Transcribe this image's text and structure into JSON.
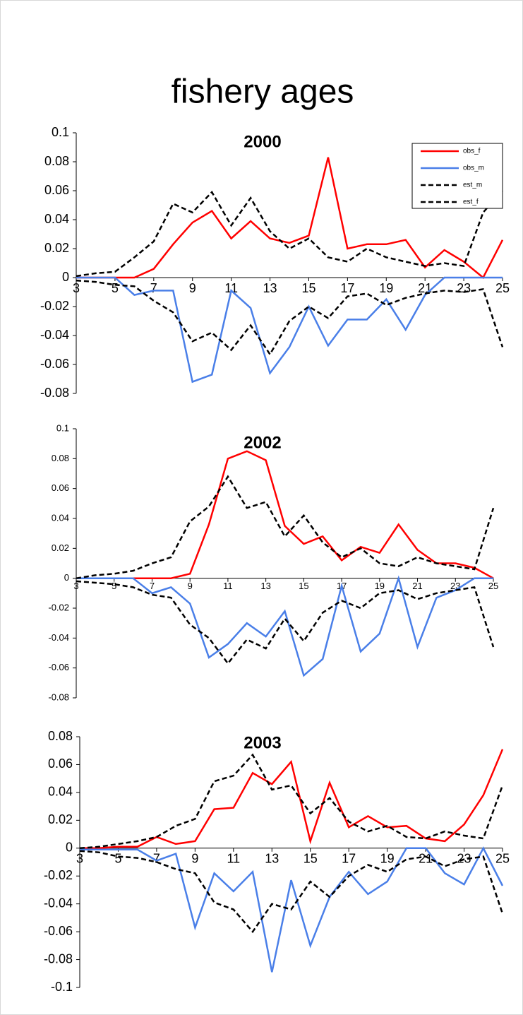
{
  "title": "fishery ages",
  "chart_data": [
    {
      "type": "line",
      "title": "2000",
      "legend": "upper right",
      "x": [
        3,
        4,
        5,
        6,
        7,
        8,
        9,
        10,
        11,
        12,
        13,
        14,
        15,
        16,
        17,
        18,
        19,
        20,
        21,
        22,
        23,
        24,
        25
      ],
      "xlim": [
        3,
        25
      ],
      "xticks": [
        3,
        5,
        7,
        9,
        11,
        13,
        15,
        17,
        19,
        21,
        23,
        25
      ],
      "ylim": [
        -0.08,
        0.1
      ],
      "yticks": [
        0.1,
        0.08,
        0.06,
        0.04,
        0.02,
        0,
        -0.02,
        -0.04,
        -0.06,
        -0.08
      ],
      "series": [
        {
          "name": "obs_f",
          "color": "#ff0000",
          "linestyle": "solid",
          "values": [
            0,
            0,
            0,
            0,
            0.006,
            0.023,
            0.038,
            0.046,
            0.027,
            0.039,
            0.027,
            0.024,
            0.029,
            0.083,
            0.02,
            0.023,
            0.023,
            0.026,
            0.007,
            0.019,
            0.011,
            0,
            0.026
          ]
        },
        {
          "name": "obs_m",
          "color": "#4a7fe8",
          "linestyle": "solid",
          "values": [
            0,
            0,
            0,
            -0.012,
            -0.009,
            -0.009,
            -0.072,
            -0.067,
            -0.009,
            -0.021,
            -0.066,
            -0.048,
            -0.02,
            -0.047,
            -0.029,
            -0.029,
            -0.015,
            -0.036,
            -0.012,
            0,
            0,
            0,
            0
          ]
        },
        {
          "name": "est_m",
          "color": "#000000",
          "linestyle": "dashed",
          "values": [
            -0.002,
            -0.003,
            -0.005,
            -0.006,
            -0.016,
            -0.024,
            -0.044,
            -0.038,
            -0.05,
            -0.033,
            -0.053,
            -0.03,
            -0.02,
            -0.028,
            -0.013,
            -0.011,
            -0.019,
            -0.014,
            -0.011,
            -0.009,
            -0.01,
            -0.008,
            -0.048
          ]
        },
        {
          "name": "est_f",
          "color": "#000000",
          "linestyle": "dashed",
          "values": [
            0.001,
            0.003,
            0.004,
            0.014,
            0.025,
            0.051,
            0.045,
            0.059,
            0.036,
            0.055,
            0.032,
            0.02,
            0.027,
            0.014,
            0.011,
            0.02,
            0.014,
            0.011,
            0.008,
            0.01,
            0.008,
            0.045,
            0.06
          ]
        }
      ]
    },
    {
      "type": "line",
      "title": "2002",
      "x": [
        3,
        4,
        5,
        6,
        7,
        8,
        9,
        10,
        11,
        12,
        13,
        14,
        15,
        16,
        17,
        18,
        19,
        20,
        21,
        22,
        23,
        24,
        25
      ],
      "xlim": [
        3,
        25
      ],
      "xticks": [
        3,
        5,
        7,
        9,
        11,
        13,
        15,
        17,
        19,
        21,
        23,
        25
      ],
      "ylim": [
        -0.08,
        0.1
      ],
      "yticks": [
        0.1,
        0.08,
        0.06,
        0.04,
        0.02,
        0,
        -0.02,
        -0.04,
        -0.06,
        -0.08
      ],
      "series": [
        {
          "color": "#ff0000",
          "linestyle": "solid",
          "values": [
            0,
            0,
            0,
            0,
            0,
            0,
            0.003,
            0.036,
            0.08,
            0.085,
            0.079,
            0.035,
            0.023,
            0.028,
            0.012,
            0.021,
            0.017,
            0.036,
            0.019,
            0.01,
            0.01,
            0.007,
            0
          ]
        },
        {
          "color": "#4a7fe8",
          "linestyle": "solid",
          "values": [
            0,
            0,
            0,
            0,
            -0.01,
            -0.006,
            -0.017,
            -0.053,
            -0.044,
            -0.03,
            -0.039,
            -0.022,
            -0.065,
            -0.054,
            -0.005,
            -0.049,
            -0.037,
            0,
            -0.046,
            -0.013,
            -0.008,
            0,
            0
          ]
        },
        {
          "color": "#000000",
          "linestyle": "dashed",
          "values": [
            -0.002,
            -0.003,
            -0.004,
            -0.006,
            -0.011,
            -0.013,
            -0.031,
            -0.04,
            -0.057,
            -0.041,
            -0.047,
            -0.027,
            -0.042,
            -0.023,
            -0.015,
            -0.02,
            -0.01,
            -0.008,
            -0.014,
            -0.01,
            -0.008,
            -0.006,
            -0.046
          ]
        },
        {
          "color": "#000000",
          "linestyle": "dashed",
          "values": [
            0,
            0.002,
            0.003,
            0.005,
            0.01,
            0.014,
            0.038,
            0.048,
            0.068,
            0.047,
            0.051,
            0.028,
            0.042,
            0.024,
            0.014,
            0.02,
            0.01,
            0.008,
            0.014,
            0.01,
            0.008,
            0.006,
            0.047
          ]
        }
      ]
    },
    {
      "type": "line",
      "title": "2003",
      "x": [
        3,
        4,
        5,
        6,
        7,
        8,
        9,
        10,
        11,
        12,
        13,
        14,
        15,
        16,
        17,
        18,
        19,
        20,
        21,
        22,
        23,
        24,
        25
      ],
      "xlim": [
        3,
        25
      ],
      "xticks": [
        3,
        5,
        7,
        9,
        11,
        13,
        15,
        17,
        19,
        21,
        23,
        25
      ],
      "ylim": [
        -0.1,
        0.08
      ],
      "yticks": [
        0.08,
        0.06,
        0.04,
        0.02,
        0,
        -0.02,
        -0.04,
        -0.06,
        -0.08,
        -0.1
      ],
      "series": [
        {
          "color": "#ff0000",
          "linestyle": "solid",
          "values": [
            0,
            0,
            0.001,
            0.001,
            0.008,
            0.003,
            0.005,
            0.028,
            0.029,
            0.054,
            0.046,
            0.062,
            0.005,
            0.047,
            0.015,
            0.023,
            0.015,
            0.016,
            0.007,
            0.005,
            0.017,
            0.038,
            0.071
          ]
        },
        {
          "color": "#4a7fe8",
          "linestyle": "solid",
          "values": [
            -0.001,
            -0.001,
            -0.001,
            -0.001,
            -0.009,
            -0.004,
            -0.057,
            -0.018,
            -0.031,
            -0.017,
            -0.089,
            -0.023,
            -0.07,
            -0.035,
            -0.017,
            -0.033,
            -0.024,
            0,
            0,
            -0.018,
            -0.026,
            0,
            -0.027
          ]
        },
        {
          "color": "#000000",
          "linestyle": "dashed",
          "values": [
            -0.002,
            -0.003,
            -0.006,
            -0.007,
            -0.01,
            -0.015,
            -0.018,
            -0.039,
            -0.044,
            -0.06,
            -0.04,
            -0.044,
            -0.024,
            -0.035,
            -0.02,
            -0.012,
            -0.017,
            -0.008,
            -0.006,
            -0.013,
            -0.008,
            -0.006,
            -0.047
          ]
        },
        {
          "color": "#000000",
          "linestyle": "dashed",
          "values": [
            0,
            0.001,
            0.003,
            0.005,
            0.008,
            0.016,
            0.021,
            0.048,
            0.052,
            0.067,
            0.042,
            0.045,
            0.025,
            0.036,
            0.019,
            0.012,
            0.016,
            0.008,
            0.007,
            0.012,
            0.009,
            0.007,
            0.045
          ]
        }
      ]
    }
  ]
}
